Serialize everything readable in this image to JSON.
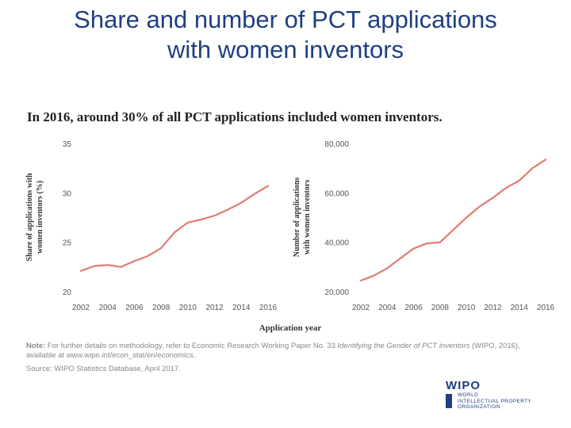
{
  "slide": {
    "title_line1": "Share and number of PCT applications",
    "title_line2": "with  women inventors"
  },
  "headline": "In 2016, around 30% of all PCT applications included women inventors.",
  "colors": {
    "line": "#e07b74",
    "title": "#1f3f80"
  },
  "chart_data": [
    {
      "type": "line",
      "x": [
        2002,
        2003,
        2004,
        2005,
        2006,
        2007,
        2008,
        2009,
        2010,
        2011,
        2012,
        2013,
        2014,
        2015,
        2016
      ],
      "values": [
        22.1,
        22.6,
        22.7,
        22.5,
        23.1,
        23.6,
        24.4,
        26.0,
        27.0,
        27.3,
        27.7,
        28.3,
        29.0,
        29.9,
        30.7
      ],
      "xticks": [
        "2002",
        "2004",
        "2006",
        "2008",
        "2010",
        "2012",
        "2014",
        "2016"
      ],
      "yticks": [
        "35",
        "30",
        "25",
        "20"
      ],
      "ylim": [
        20,
        35
      ],
      "ylabel_line1": "Share of applications with",
      "ylabel_line2": "women inventors (%)",
      "grid": false
    },
    {
      "type": "line",
      "x": [
        2002,
        2003,
        2004,
        2005,
        2006,
        2007,
        2008,
        2009,
        2010,
        2011,
        2012,
        2013,
        2014,
        2015,
        2016
      ],
      "values": [
        24500,
        26500,
        29500,
        33500,
        37500,
        39500,
        40000,
        45000,
        50000,
        54500,
        58000,
        62000,
        65000,
        70000,
        73500
      ],
      "xticks": [
        "2002",
        "2004",
        "2006",
        "2008",
        "2010",
        "2012",
        "2014",
        "2016"
      ],
      "yticks": [
        "80,000",
        "60,000",
        "40,000",
        "20,000"
      ],
      "ylim": [
        20000,
        80000
      ],
      "ylabel_line1": "Number of applications",
      "ylabel_line2": "with women inventors",
      "grid": false
    }
  ],
  "xlabel": "Application year",
  "note": {
    "label": "Note:",
    "text1": " For further details on methodology, refer to Economic Research Working Paper No. 33 ",
    "title": "Identifying the Gender of PCT inventors",
    "text2": " (WIPO, 2016),",
    "text3": "available at www.wipo.int/econ_stat/en/economics."
  },
  "source": "Source: WIPO Statistics Database, April 2017.",
  "logo": {
    "word": "WIPO",
    "line1": "WORLD",
    "line2": "INTELLECTUAL PROPERTY",
    "line3": "ORGANIZATION"
  }
}
